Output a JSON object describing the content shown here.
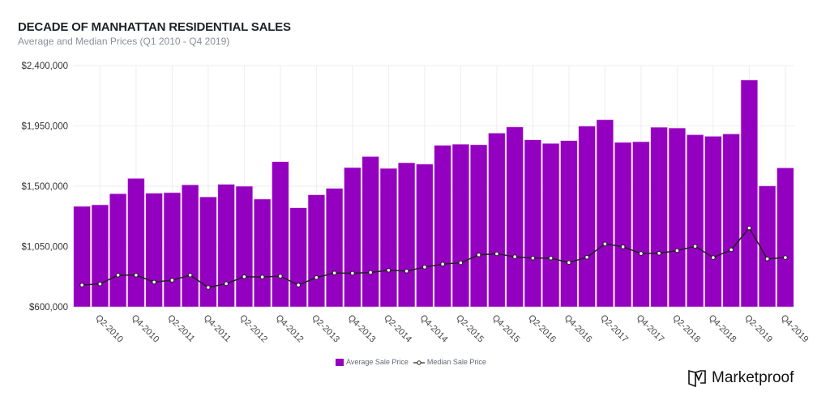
{
  "chart_data": {
    "type": "bar",
    "title": "DECADE OF MANHATTAN RESIDENTIAL SALES",
    "subtitle": "Average and Median Prices (Q1 2010 - Q4 2019)",
    "categories": [
      "Q1-2010",
      "Q2-2010",
      "Q3-2010",
      "Q4-2010",
      "Q1-2011",
      "Q2-2011",
      "Q3-2011",
      "Q4-2011",
      "Q1-2012",
      "Q2-2012",
      "Q3-2012",
      "Q4-2012",
      "Q1-2013",
      "Q2-2013",
      "Q3-2013",
      "Q4-2013",
      "Q1-2014",
      "Q2-2014",
      "Q3-2014",
      "Q4-2014",
      "Q1-2015",
      "Q2-2015",
      "Q3-2015",
      "Q4-2015",
      "Q1-2016",
      "Q2-2016",
      "Q3-2016",
      "Q4-2016",
      "Q1-2017",
      "Q2-2017",
      "Q3-2017",
      "Q4-2017",
      "Q1-2018",
      "Q2-2018",
      "Q3-2018",
      "Q4-2018",
      "Q1-2019",
      "Q2-2019",
      "Q3-2019",
      "Q4-2019"
    ],
    "xtick_labels": [
      "Q2-2010",
      "Q4-2010",
      "Q2-2011",
      "Q4-2011",
      "Q2-2012",
      "Q4-2012",
      "Q2-2013",
      "Q4-2013",
      "Q2-2014",
      "Q4-2014",
      "Q2-2015",
      "Q4-2015",
      "Q2-2016",
      "Q4-2016",
      "Q2-2017",
      "Q4-2017",
      "Q2-2018",
      "Q4-2018",
      "Q2-2019",
      "Q4-2019"
    ],
    "series": [
      {
        "name": "Average Sale Price",
        "type": "bar",
        "color": "#9400BF",
        "values": [
          1350000,
          1361000,
          1444000,
          1558000,
          1448000,
          1452000,
          1510000,
          1420000,
          1514000,
          1500000,
          1404000,
          1683000,
          1339000,
          1436000,
          1484000,
          1639000,
          1721000,
          1633000,
          1675000,
          1665000,
          1805000,
          1813000,
          1809000,
          1896000,
          1942000,
          1846000,
          1819000,
          1840000,
          1948000,
          1996000,
          1827000,
          1832000,
          1940000,
          1934000,
          1884000,
          1872000,
          1890000,
          2292000,
          1502000,
          1637000
        ]
      },
      {
        "name": "Median Sale Price",
        "type": "line",
        "color": "#222222",
        "values": [
          763000,
          771000,
          837000,
          837000,
          785000,
          799000,
          837000,
          745000,
          773000,
          825000,
          823000,
          829000,
          763000,
          819000,
          853000,
          851000,
          857000,
          873000,
          867000,
          897000,
          919000,
          929000,
          988000,
          996000,
          974000,
          964000,
          964000,
          931000,
          970000,
          1070000,
          1048000,
          998000,
          1000000,
          1020000,
          1052000,
          968000,
          1026000,
          1189000,
          958000,
          968000
        ]
      }
    ],
    "ylim": [
      600000,
      2400000
    ],
    "yticks": [
      600000,
      1050000,
      1500000,
      1950000,
      2400000
    ],
    "ytick_labels": [
      "$600,000",
      "$1,050,000",
      "$1,500,000",
      "$1,950,000",
      "$2,400,000"
    ],
    "grid": true,
    "legend": "bottom-center"
  },
  "branding": {
    "logo_text": "Marketproof"
  }
}
